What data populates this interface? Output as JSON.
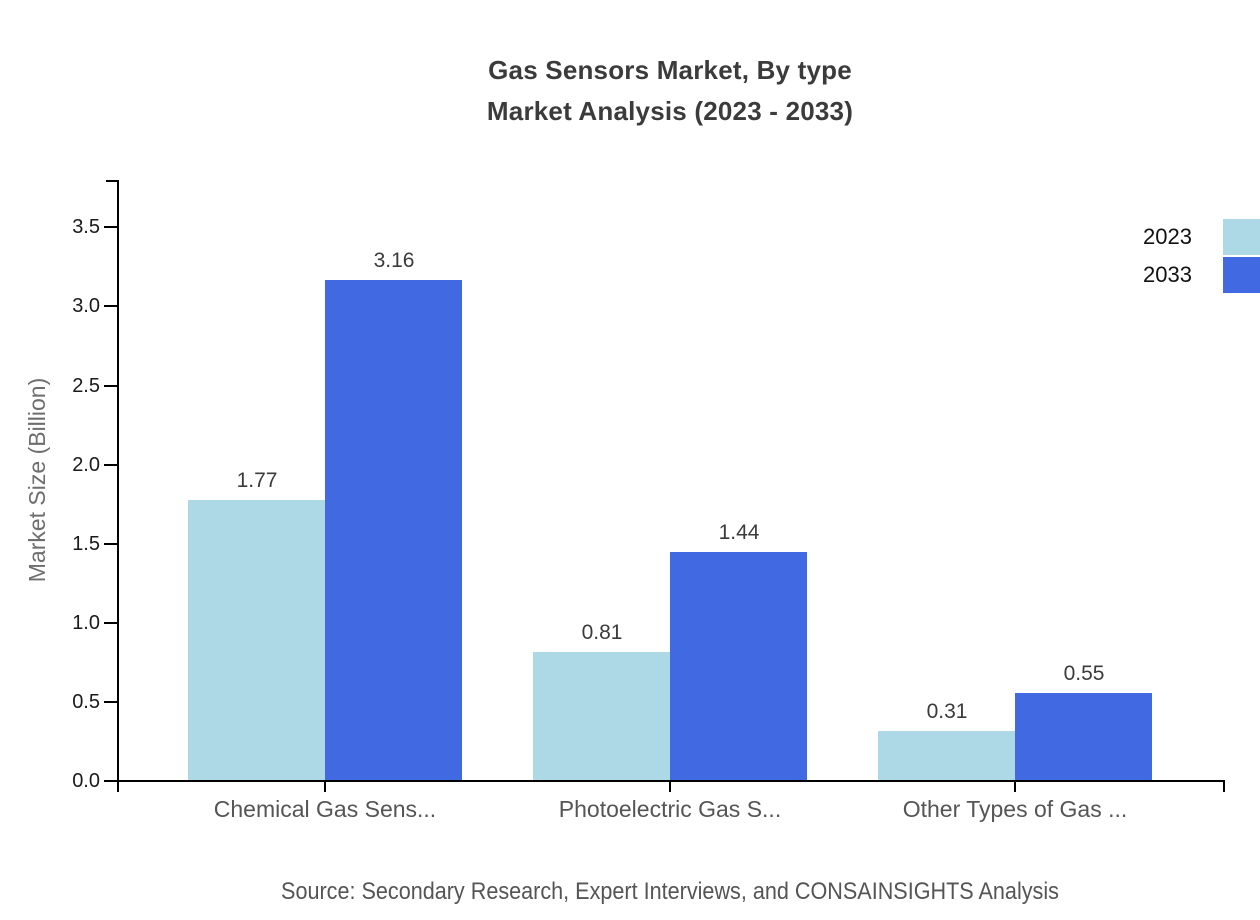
{
  "chart_data": {
    "type": "bar",
    "title_lines": [
      "Gas Sensors Market, By type",
      "Market Analysis (2023 - 2033)"
    ],
    "ylabel": "Market Size (Billion)",
    "categories": [
      "Chemical Gas Sens...",
      "Photoelectric Gas S...",
      "Other Types of Gas ..."
    ],
    "series": [
      {
        "name": "2023",
        "color": "#ADD8E6",
        "values": [
          1.77,
          0.81,
          0.31
        ]
      },
      {
        "name": "2033",
        "color": "#4169E1",
        "values": [
          3.16,
          1.44,
          0.55
        ]
      }
    ],
    "yticks": [
      "0.0",
      "0.5",
      "1.0",
      "1.5",
      "2.0",
      "2.5",
      "3.0",
      "3.5"
    ],
    "ylim": [
      0,
      3.8
    ],
    "grid": false,
    "legend_position": "top-right",
    "source": "Source: Secondary Research, Expert Interviews, and CONSAINSIGHTS Analysis"
  },
  "colors": {
    "axis": "#000000",
    "title_text": "#3b3b3b",
    "tick_label": "#1a1a1a",
    "category_label": "#555555",
    "value_label": "#3b3b3b",
    "axis_title": "#6e6e6e",
    "legend_text": "#111111",
    "source_text": "#555555"
  }
}
